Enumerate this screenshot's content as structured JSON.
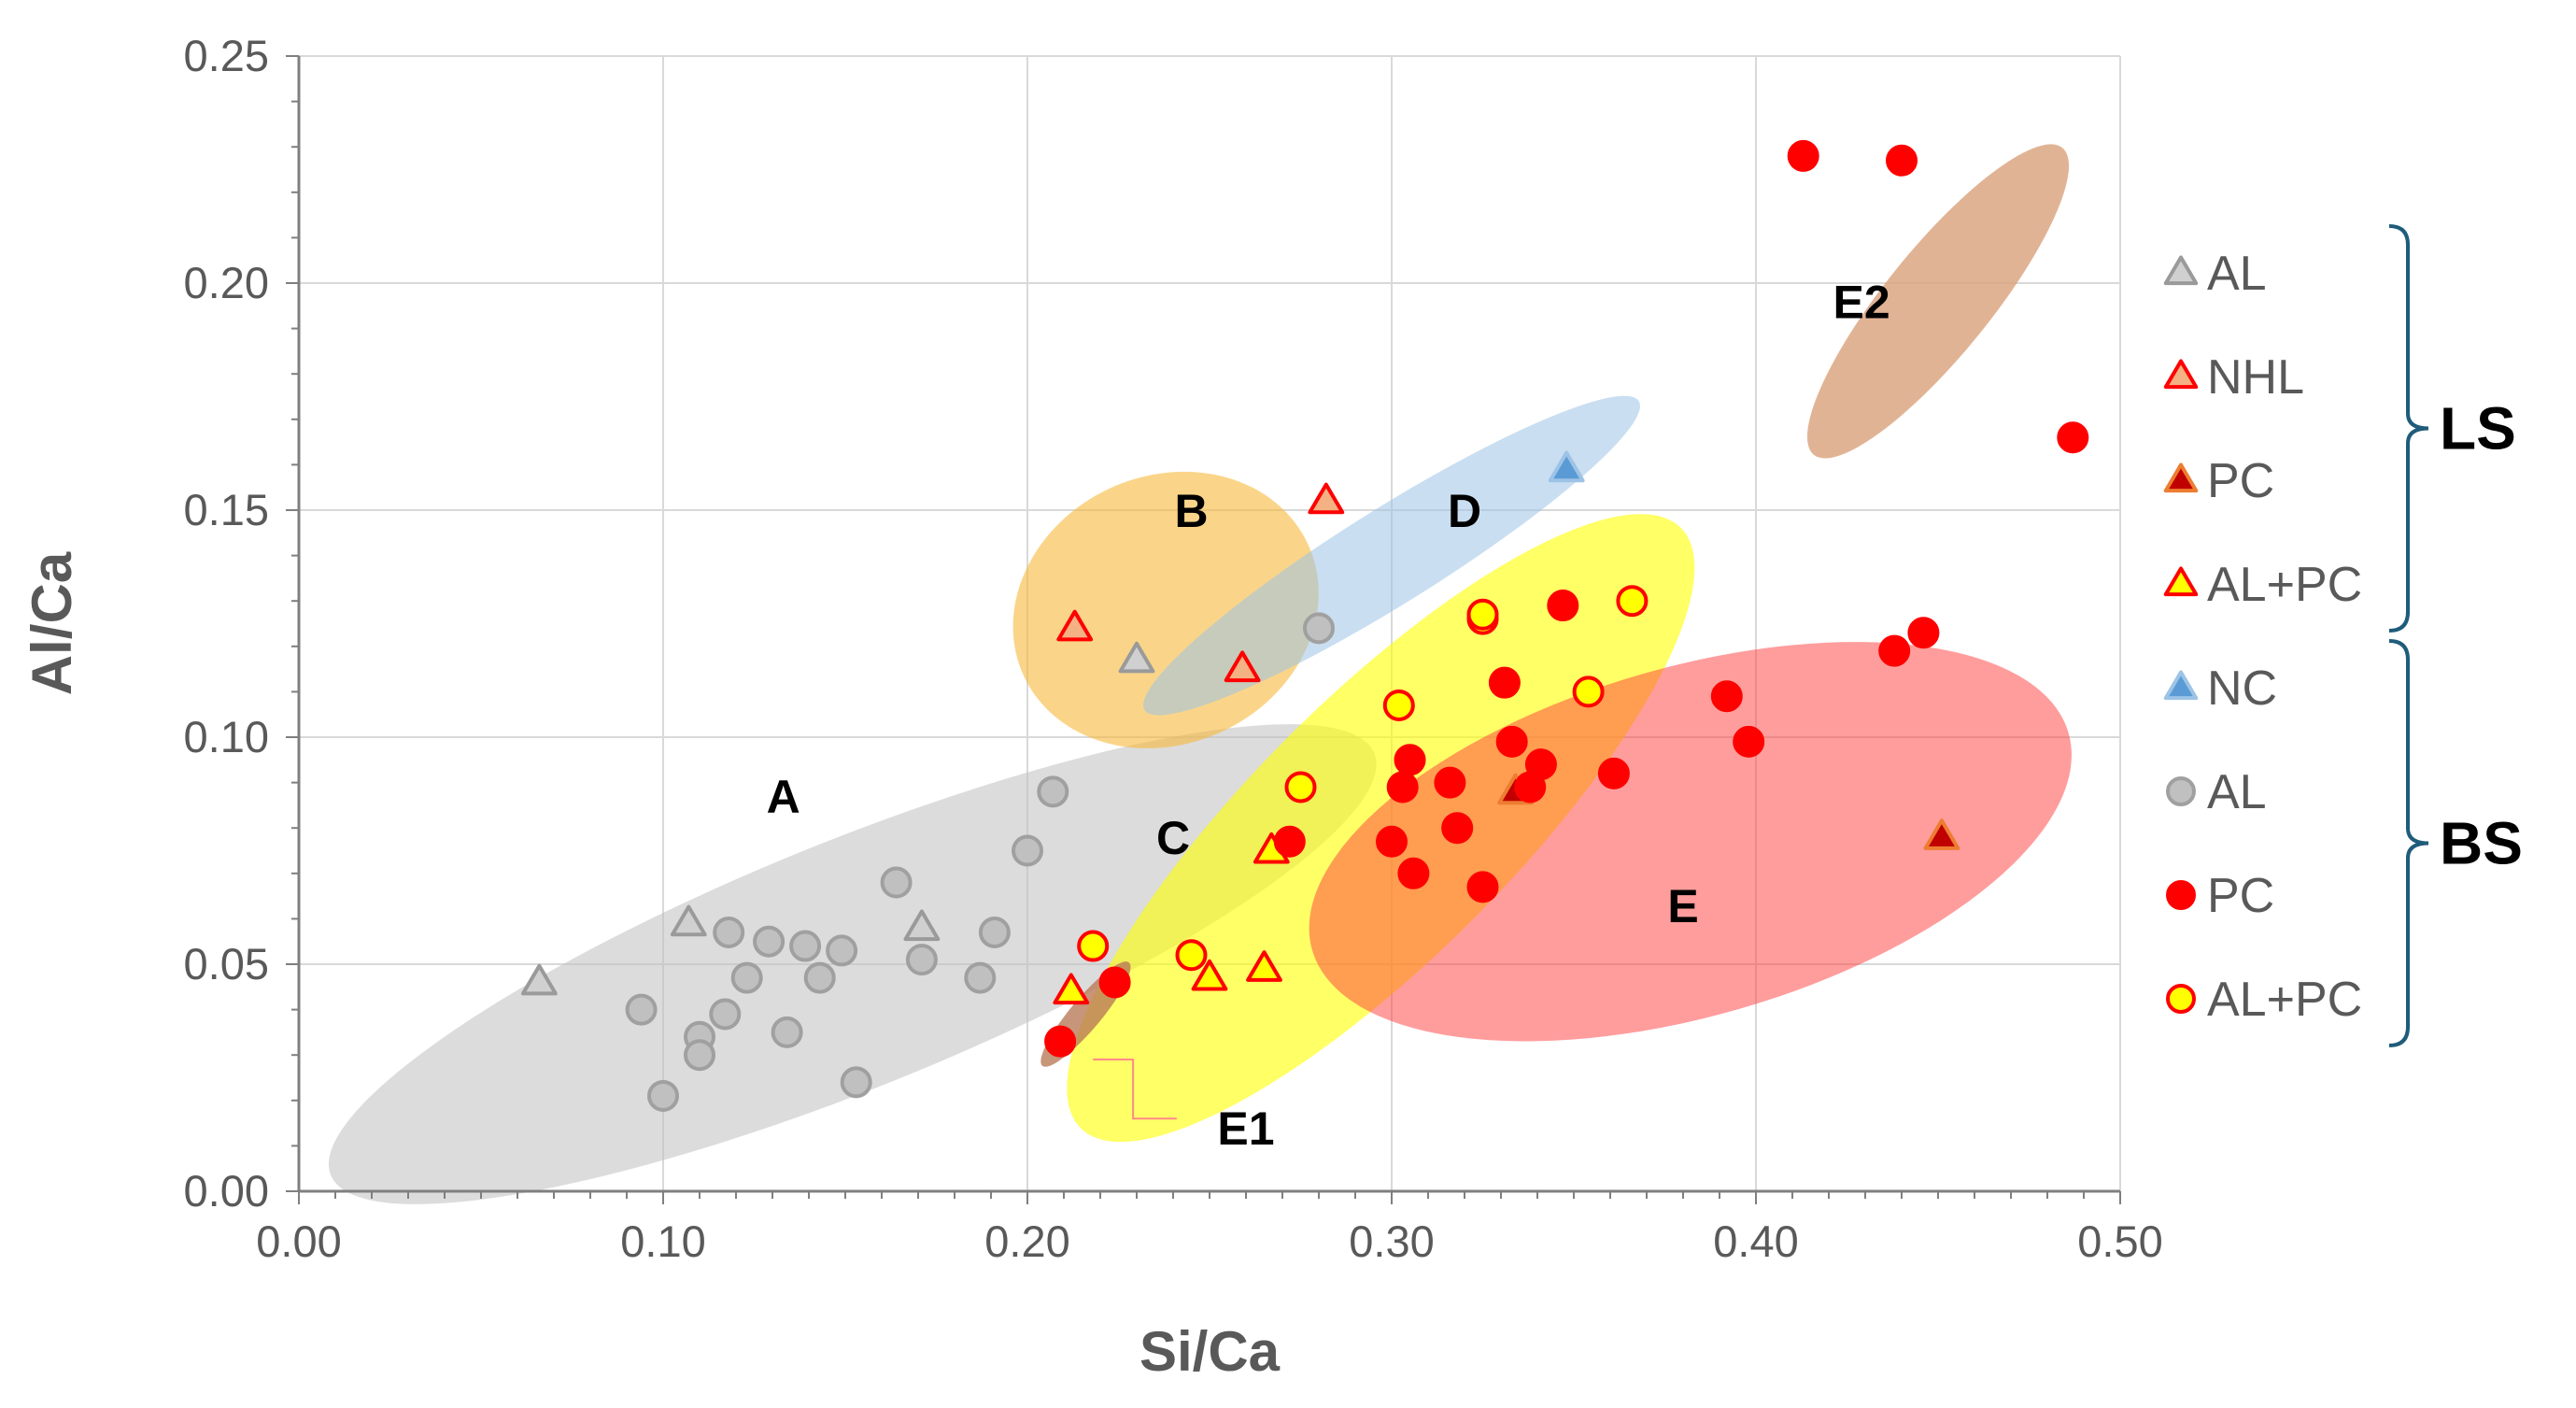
{
  "chart_data": {
    "type": "scatter",
    "xlabel": "Si/Ca",
    "ylabel": "Al/Ca",
    "xlim": [
      0.0,
      0.5
    ],
    "ylim": [
      0.0,
      0.25
    ],
    "xticks": [
      "0.00",
      "0.10",
      "0.20",
      "0.30",
      "0.40",
      "0.50"
    ],
    "yticks": [
      "0.00",
      "0.05",
      "0.10",
      "0.15",
      "0.20",
      "0.25"
    ],
    "grid": true,
    "regions": [
      {
        "name": "A",
        "label": "A",
        "color": "#bfbfbf",
        "opacity": 0.55,
        "center": [
          0.152,
          0.05
        ],
        "rx": 0.1545,
        "ry": 0.0272,
        "angle": -22,
        "label_at": [
          0.133,
          0.087
        ]
      },
      {
        "name": "B",
        "label": "B",
        "color": "#f6b93b",
        "opacity": 0.6,
        "center": [
          0.238,
          0.128
        ],
        "rx": 0.043,
        "ry": 0.0295,
        "angle": -25,
        "label_at": [
          0.245,
          0.15
        ]
      },
      {
        "name": "D",
        "label": "D",
        "color": "#9dc3e6",
        "opacity": 0.55,
        "center": [
          0.3,
          0.14
        ],
        "rx": 0.08,
        "ry": 0.0105,
        "angle": -32,
        "label_at": [
          0.32,
          0.15
        ]
      },
      {
        "name": "C",
        "label": "C",
        "color": "#ffff00",
        "opacity": 0.6,
        "center": [
          0.297,
          0.08
        ],
        "rx": 0.1165,
        "ry": 0.0286,
        "angle": -45,
        "label_at": [
          0.24,
          0.078
        ]
      },
      {
        "name": "E",
        "label": "E",
        "color": "#ff3b3b",
        "opacity": 0.5,
        "center": [
          0.382,
          0.077
        ],
        "rx": 0.108,
        "ry": 0.0384,
        "angle": -16,
        "label_at": [
          0.38,
          0.063
        ]
      },
      {
        "name": "E1",
        "label": "E1",
        "color": "#b97a57",
        "opacity": 0.8,
        "center": [
          0.216,
          0.039
        ],
        "rx": 0.0185,
        "ry": 0.0034,
        "angle": -50,
        "label_at": [
          0.26,
          0.014
        ]
      },
      {
        "name": "E2",
        "label": "E2",
        "color": "#d9a07a",
        "opacity": 0.8,
        "center": [
          0.45,
          0.196
        ],
        "rx": 0.0542,
        "ry": 0.0116,
        "angle": -51,
        "label_at": [
          0.429,
          0.196
        ]
      }
    ],
    "series": [
      {
        "name": "LS AL",
        "label": "AL",
        "marker": "triangle",
        "fill": "#d0d0d0",
        "stroke": "#9a9a9a",
        "points": [
          [
            0.066,
            0.046
          ],
          [
            0.107,
            0.059
          ],
          [
            0.171,
            0.058
          ],
          [
            0.23,
            0.117
          ]
        ]
      },
      {
        "name": "LS NHL",
        "label": "NHL",
        "marker": "triangle",
        "fill": "#f4b183",
        "stroke": "#ff0000",
        "points": [
          [
            0.213,
            0.124
          ],
          [
            0.259,
            0.115
          ],
          [
            0.282,
            0.152
          ]
        ]
      },
      {
        "name": "LS PC",
        "label": "PC",
        "marker": "triangle",
        "fill": "#c00000",
        "stroke": "#ed7d31",
        "points": [
          [
            0.334,
            0.088
          ],
          [
            0.451,
            0.078
          ]
        ]
      },
      {
        "name": "LS AL+PC",
        "label": "AL+PC",
        "marker": "triangle",
        "fill": "#ffff00",
        "stroke": "#ff0000",
        "points": [
          [
            0.212,
            0.044
          ],
          [
            0.25,
            0.047
          ],
          [
            0.265,
            0.049
          ],
          [
            0.267,
            0.075
          ]
        ]
      },
      {
        "name": "BS NC",
        "label": "NC",
        "marker": "triangle",
        "fill": "#5b9bd5",
        "stroke": "#9dc3e6",
        "points": [
          [
            0.348,
            0.159
          ]
        ]
      },
      {
        "name": "BS AL",
        "label": "AL",
        "marker": "circle",
        "fill": "#c0c0c0",
        "stroke": "#a0a0a0",
        "points": [
          [
            0.094,
            0.04
          ],
          [
            0.1,
            0.021
          ],
          [
            0.11,
            0.034
          ],
          [
            0.11,
            0.03
          ],
          [
            0.117,
            0.039
          ],
          [
            0.118,
            0.057
          ],
          [
            0.123,
            0.047
          ],
          [
            0.129,
            0.055
          ],
          [
            0.134,
            0.035
          ],
          [
            0.139,
            0.054
          ],
          [
            0.143,
            0.047
          ],
          [
            0.149,
            0.053
          ],
          [
            0.153,
            0.024
          ],
          [
            0.164,
            0.068
          ],
          [
            0.171,
            0.051
          ],
          [
            0.187,
            0.047
          ],
          [
            0.191,
            0.057
          ],
          [
            0.2,
            0.075
          ],
          [
            0.207,
            0.088
          ],
          [
            0.28,
            0.124
          ]
        ]
      },
      {
        "name": "BS PC",
        "label": "PC",
        "marker": "circle",
        "fill": "#ff0000",
        "stroke": "#ff0000",
        "points": [
          [
            0.209,
            0.033
          ],
          [
            0.224,
            0.046
          ],
          [
            0.272,
            0.077
          ],
          [
            0.3,
            0.077
          ],
          [
            0.303,
            0.089
          ],
          [
            0.305,
            0.095
          ],
          [
            0.306,
            0.07
          ],
          [
            0.316,
            0.09
          ],
          [
            0.318,
            0.08
          ],
          [
            0.325,
            0.067
          ],
          [
            0.331,
            0.112
          ],
          [
            0.333,
            0.099
          ],
          [
            0.338,
            0.089
          ],
          [
            0.341,
            0.094
          ],
          [
            0.347,
            0.129
          ],
          [
            0.361,
            0.092
          ],
          [
            0.392,
            0.109
          ],
          [
            0.398,
            0.099
          ],
          [
            0.438,
            0.119
          ],
          [
            0.446,
            0.123
          ],
          [
            0.413,
            0.228
          ],
          [
            0.44,
            0.227
          ],
          [
            0.487,
            0.166
          ]
        ]
      },
      {
        "name": "BS AL+PC",
        "label": "AL+PC",
        "marker": "circle",
        "fill": "#ffff00",
        "stroke": "#ff0000",
        "points": [
          [
            0.218,
            0.054
          ],
          [
            0.245,
            0.052
          ],
          [
            0.275,
            0.089
          ],
          [
            0.302,
            0.107
          ],
          [
            0.325,
            0.126
          ],
          [
            0.325,
            0.127
          ],
          [
            0.354,
            0.11
          ],
          [
            0.366,
            0.13
          ]
        ]
      }
    ],
    "legend": {
      "position": "right",
      "groups": [
        {
          "name": "LS",
          "series": [
            0,
            1,
            2,
            3
          ]
        },
        {
          "name": "BS",
          "series": [
            4,
            5,
            6,
            7
          ]
        }
      ]
    }
  }
}
